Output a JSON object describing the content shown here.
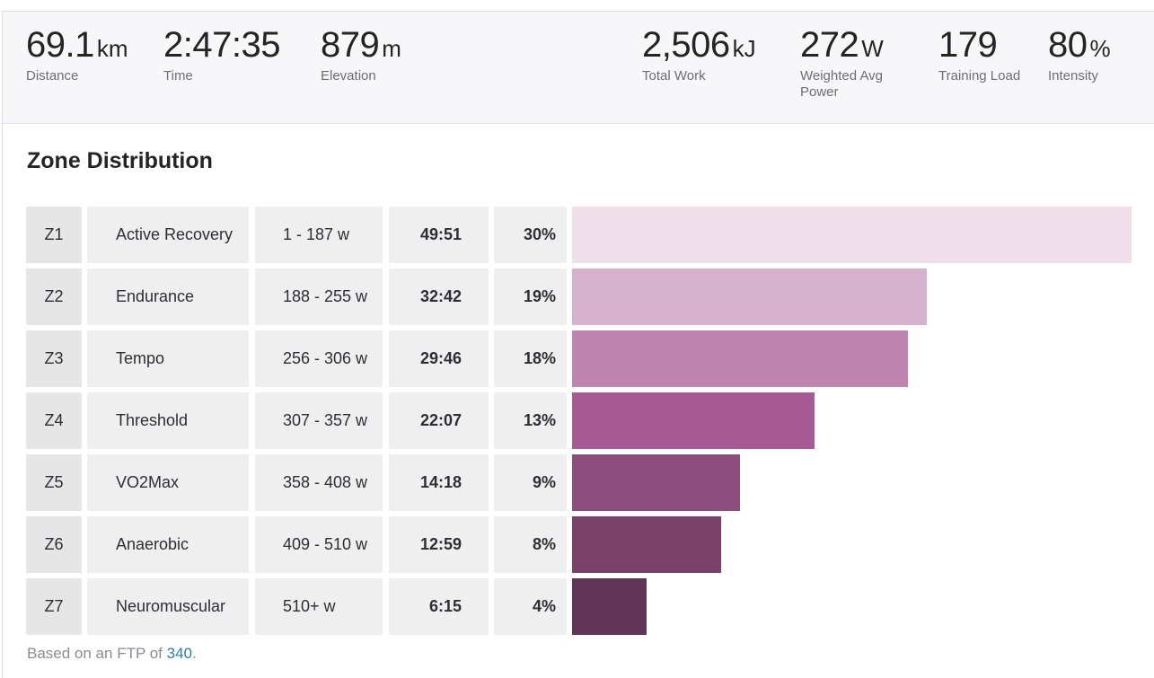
{
  "stats": [
    {
      "value": "69.1",
      "unit": "km",
      "label": "Distance"
    },
    {
      "value": "2:47:35",
      "unit": "",
      "label": "Time"
    },
    {
      "value": "879",
      "unit": "m",
      "label": "Elevation"
    },
    {
      "value": "2,506",
      "unit": "kJ",
      "label": "Total Work"
    },
    {
      "value": "272",
      "unit": "W",
      "label": "Weighted Avg Power"
    },
    {
      "value": "179",
      "unit": "",
      "label": "Training Load"
    },
    {
      "value": "80",
      "unit": "%",
      "label": "Intensity"
    }
  ],
  "section_title": "Zone Distribution",
  "zones": [
    {
      "zone": "Z1",
      "name": "Active Recovery",
      "range": "1 - 187 w",
      "time": "49:51",
      "percent": "30%",
      "share": 30,
      "color": "#f0dfea"
    },
    {
      "zone": "Z2",
      "name": "Endurance",
      "range": "188 - 255 w",
      "time": "32:42",
      "percent": "19%",
      "share": 19,
      "color": "#d6b1cb"
    },
    {
      "zone": "Z3",
      "name": "Tempo",
      "range": "256 - 306 w",
      "time": "29:46",
      "percent": "18%",
      "share": 18,
      "color": "#c084b0"
    },
    {
      "zone": "Z4",
      "name": "Threshold",
      "range": "307 - 357 w",
      "time": "22:07",
      "percent": "13%",
      "share": 13,
      "color": "#a65a93"
    },
    {
      "zone": "Z5",
      "name": "VO2Max",
      "range": "358 - 408 w",
      "time": "14:18",
      "percent": "9%",
      "share": 9,
      "color": "#8e4d7f"
    },
    {
      "zone": "Z6",
      "name": "Anaerobic",
      "range": "409 - 510 w",
      "time": "12:59",
      "percent": "8%",
      "share": 8,
      "color": "#7a4169"
    },
    {
      "zone": "Z7",
      "name": "Neuromuscular",
      "range": "510+ w",
      "time": "6:15",
      "percent": "4%",
      "share": 4,
      "color": "#623456"
    }
  ],
  "footer": {
    "prefix": "Based on an FTP of ",
    "ftp": "340",
    "suffix": "."
  }
}
